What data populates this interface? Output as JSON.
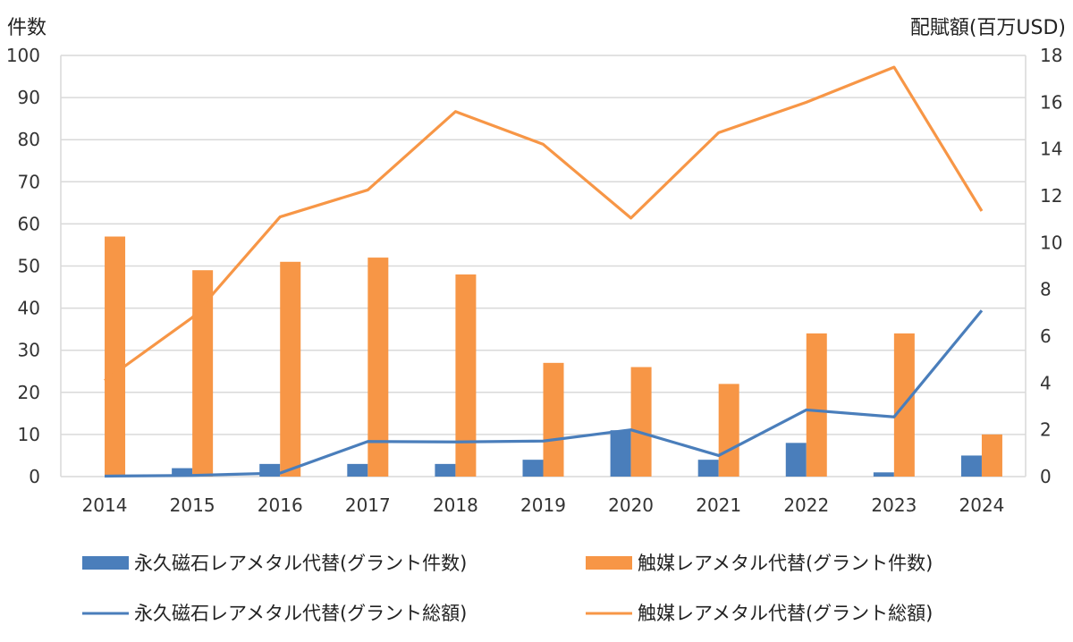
{
  "chart_data": {
    "type": "bar+line",
    "categories": [
      "2014",
      "2015",
      "2016",
      "2017",
      "2018",
      "2019",
      "2020",
      "2021",
      "2022",
      "2023",
      "2024"
    ],
    "left_axis": {
      "label": "件数",
      "ylim": [
        0,
        100
      ],
      "ticks": [
        "0",
        "10",
        "20",
        "30",
        "40",
        "50",
        "60",
        "70",
        "80",
        "90",
        "100"
      ]
    },
    "right_axis": {
      "label": "配賦額(百万USD)",
      "ylim": [
        0,
        18
      ],
      "ticks": [
        "0",
        "2",
        "4",
        "6",
        "8",
        "10",
        "12",
        "14",
        "16",
        "18"
      ]
    },
    "series": [
      {
        "name": "永久磁石レアメタル代替(グラント件数)",
        "kind": "bar",
        "axis": "left",
        "color": "#4a7ebb",
        "values": [
          0,
          2,
          3,
          3,
          3,
          4,
          11,
          4,
          8,
          1,
          5
        ]
      },
      {
        "name": "触媒レアメタル代替(グラント件数)",
        "kind": "bar",
        "axis": "left",
        "color": "#f79646",
        "values": [
          57,
          49,
          51,
          52,
          48,
          27,
          26,
          22,
          34,
          34,
          10
        ]
      },
      {
        "name": "永久磁石レアメタル代替(グラント総額)",
        "kind": "line",
        "axis": "right",
        "color": "#4a7ebb",
        "values": [
          0.02,
          0.05,
          0.15,
          1.5,
          1.48,
          1.52,
          2.0,
          0.9,
          2.85,
          2.55,
          7.1
        ]
      },
      {
        "name": "触媒レアメタル代替(グラント総額)",
        "kind": "line",
        "axis": "right",
        "color": "#f79646",
        "values": [
          4.1,
          6.8,
          11.1,
          12.25,
          15.6,
          14.2,
          11.05,
          14.7,
          16.0,
          17.5,
          11.35
        ]
      }
    ],
    "grid": true,
    "legend_position": "bottom"
  }
}
